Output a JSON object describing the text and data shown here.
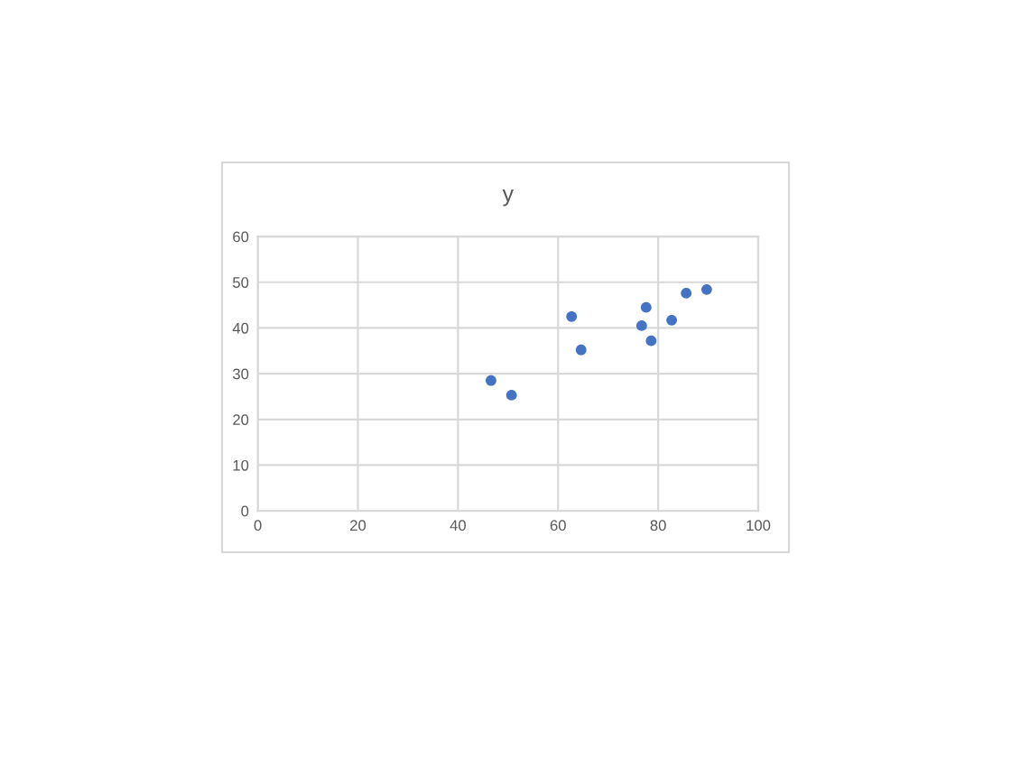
{
  "chart_data": {
    "type": "scatter",
    "title": "y",
    "x": [
      46.6,
      50.7,
      62.7,
      64.6,
      76.7,
      77.6,
      78.6,
      82.7,
      85.6,
      89.7
    ],
    "values": [
      28.5,
      25.3,
      42.5,
      35.2,
      40.5,
      44.5,
      37.2,
      41.7,
      47.6,
      48.4
    ],
    "color": "#4472c4",
    "marker": "circle",
    "xlim": [
      0,
      100
    ],
    "xticks": [
      0,
      20,
      40,
      60,
      80,
      100
    ],
    "ylim": [
      0,
      60
    ],
    "yticks": [
      0,
      10,
      20,
      30,
      40,
      50,
      60
    ],
    "grid": true
  }
}
